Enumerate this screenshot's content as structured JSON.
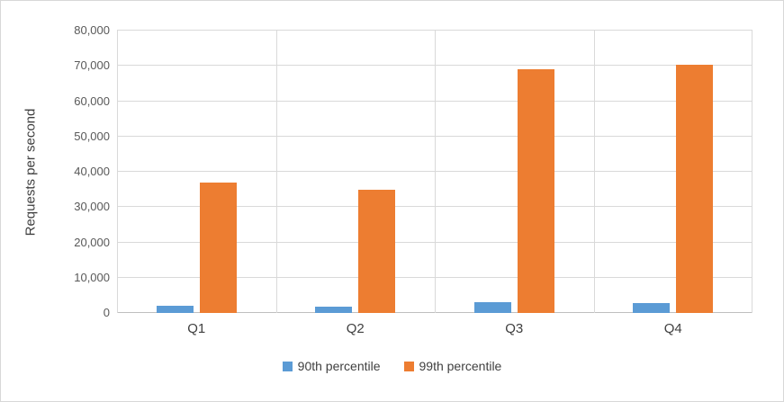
{
  "chart_data": {
    "type": "bar",
    "title": "",
    "ylabel": "Requests per second",
    "xlabel": "",
    "categories": [
      "Q1",
      "Q2",
      "Q3",
      "Q4"
    ],
    "series": [
      {
        "name": "90th percentile",
        "color": "#5b9bd5",
        "values": [
          2000,
          1800,
          3000,
          2800
        ]
      },
      {
        "name": "99th percentile",
        "color": "#ed7d31",
        "values": [
          37000,
          35000,
          69000,
          70200
        ]
      }
    ],
    "ylim": [
      0,
      80000
    ],
    "ytick_step": 10000,
    "ytick_labels": [
      "0",
      "10,000",
      "20,000",
      "30,000",
      "40,000",
      "50,000",
      "60,000",
      "70,000",
      "80,000"
    ],
    "grid": "horizontal gridlines plus vertical category separators",
    "legend_position": "bottom",
    "gridline_color": "#d9d9d9",
    "tick_label_color": "#595959"
  }
}
